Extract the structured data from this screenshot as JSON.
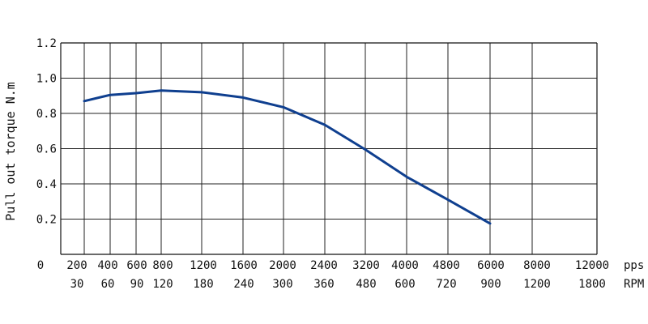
{
  "chart_data": {
    "type": "line",
    "title": "",
    "ylabel": "Pull out torque N.m",
    "xlabel": "",
    "ylim": [
      0,
      1.2
    ],
    "y_ticks": [
      "0.2",
      "0.4",
      "0.6",
      "0.8",
      "1.0",
      "1.2"
    ],
    "origin_label": "0",
    "x": [
      200,
      400,
      600,
      800,
      1200,
      1600,
      2000,
      2400,
      3200,
      4000,
      4800,
      6000
    ],
    "x_categories_pps": [
      "200",
      "400",
      "600",
      "800",
      "1200",
      "1600",
      "2000",
      "2400",
      "3200",
      "4000",
      "4800",
      "6000",
      "8000",
      "12000"
    ],
    "x_categories_rpm": [
      "30",
      "60",
      "90",
      "120",
      "180",
      "240",
      "300",
      "360",
      "480",
      "600",
      "720",
      "900",
      "1200",
      "1800"
    ],
    "x_unit_pps": "pps",
    "x_unit_rpm": "RPM",
    "grid": true,
    "series": [
      {
        "values": [
          0.87,
          0.905,
          0.915,
          0.93,
          0.92,
          0.89,
          0.835,
          0.735,
          0.595,
          0.44,
          0.31,
          0.175
        ],
        "color": "#0f3f8f"
      }
    ]
  }
}
